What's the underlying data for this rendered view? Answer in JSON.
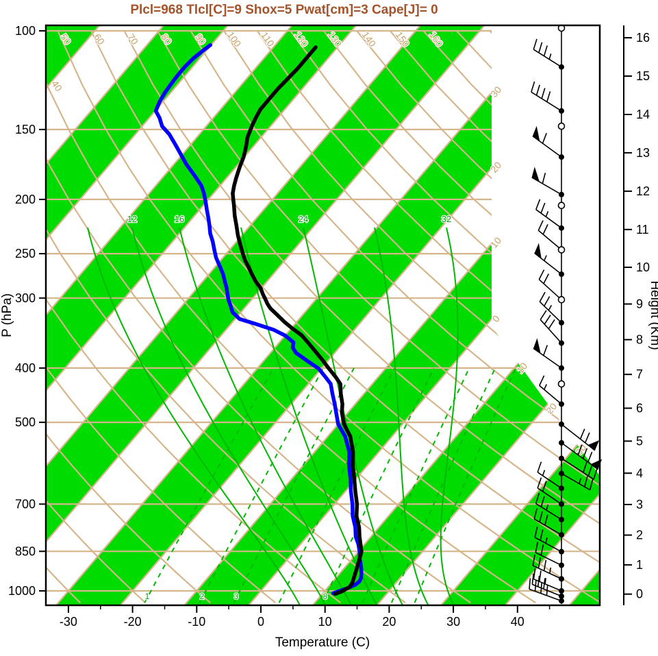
{
  "title": {
    "text": "Plcl=968 Tlcl[C]=9 Shox=5 Pwat[cm]=3 Cape[J]= 0",
    "color": "#a5532a"
  },
  "axes": {
    "pressure": {
      "label": "P (hPa)",
      "ticks": [
        100,
        150,
        200,
        250,
        300,
        400,
        500,
        700,
        850,
        1000
      ]
    },
    "temperature": {
      "label": "Temperature (C)",
      "ticks": [
        -30,
        -20,
        -10,
        0,
        10,
        20,
        30,
        40
      ]
    },
    "height": {
      "label": "Height (Km)",
      "ticks": [
        0,
        1,
        2,
        3,
        4,
        5,
        6,
        7,
        8,
        9,
        10,
        11,
        12,
        13,
        14,
        15,
        16
      ]
    }
  },
  "line_labels": {
    "top_tan": [
      "40",
      "50",
      "60",
      "70",
      "80",
      "90",
      "100",
      "110",
      "120",
      "130",
      "140",
      "150",
      "160"
    ],
    "right_tan": [
      "30",
      "20",
      "10",
      "0",
      "10",
      "20",
      "30"
    ],
    "green_moist": [
      "12",
      "16",
      "24",
      "32"
    ],
    "green_mixing": [
      "1",
      "2",
      "3",
      "8"
    ]
  },
  "colors": {
    "stripe_green": "#00dc00",
    "line_green": "#00b800",
    "tan": "#d6b58a",
    "tan_text": "#c9a166",
    "temperature_curve": "#000000",
    "dewpoint_curve": "#0000ff"
  },
  "chart_data": {
    "type": "line",
    "subtype": "skewT_logP_sounding",
    "title": "Plcl=968 Tlcl[C]=9 Shox=5 Pwat[cm]=3 Cape[J]= 0",
    "xlabel": "Temperature (C)",
    "ylabel_left": "P (hPa)",
    "ylabel_right": "Height (Km)",
    "x_range_c": [
      -33,
      45
    ],
    "pressure_range_hpa": [
      100,
      1050
    ],
    "parameters": {
      "plcl_hpa": 968,
      "tlcl_c": 9,
      "showalter_index": 5,
      "precipitable_water_cm": 3,
      "cape_j": 0
    },
    "temperature_profile_p_t": [
      [
        1013,
        12.0
      ],
      [
        1002,
        12.7
      ],
      [
        985,
        13.3
      ],
      [
        968,
        13.2
      ],
      [
        940,
        12.6
      ],
      [
        900,
        11.7
      ],
      [
        851,
        10.5
      ],
      [
        800,
        8.2
      ],
      [
        770,
        6.9
      ],
      [
        735,
        5.0
      ],
      [
        700,
        3.5
      ],
      [
        665,
        1.6
      ],
      [
        632,
        -0.2
      ],
      [
        600,
        -2.1
      ],
      [
        565,
        -4.0
      ],
      [
        530,
        -6.5
      ],
      [
        504,
        -9.1
      ],
      [
        480,
        -11.0
      ],
      [
        464,
        -12.0
      ],
      [
        445,
        -13.6
      ],
      [
        427,
        -15.0
      ],
      [
        414,
        -16.8
      ],
      [
        401,
        -18.8
      ],
      [
        388,
        -20.8
      ],
      [
        376,
        -22.8
      ],
      [
        362,
        -25.2
      ],
      [
        350,
        -27.4
      ],
      [
        340,
        -29.8
      ],
      [
        331,
        -31.9
      ],
      [
        321,
        -34.1
      ],
      [
        313,
        -35.9
      ],
      [
        307,
        -37.0
      ],
      [
        302,
        -37.8
      ],
      [
        295,
        -39.0
      ],
      [
        288,
        -40.1
      ],
      [
        280,
        -41.8
      ],
      [
        272,
        -43.3
      ],
      [
        264,
        -44.8
      ],
      [
        257,
        -46.2
      ],
      [
        249,
        -47.6
      ],
      [
        241,
        -49.0
      ],
      [
        232,
        -50.6
      ],
      [
        223,
        -52.1
      ],
      [
        214,
        -53.7
      ],
      [
        205,
        -55.2
      ],
      [
        200,
        -56.1
      ],
      [
        195,
        -57.0
      ],
      [
        189,
        -57.8
      ],
      [
        183,
        -58.5
      ],
      [
        175,
        -59.4
      ],
      [
        168,
        -60.1
      ],
      [
        161,
        -61.1
      ],
      [
        155,
        -62.1
      ],
      [
        148,
        -62.9
      ],
      [
        143,
        -63.4
      ],
      [
        138,
        -63.8
      ],
      [
        132,
        -63.8
      ],
      [
        127,
        -63.8
      ],
      [
        122,
        -63.6
      ],
      [
        117,
        -63.4
      ],
      [
        112,
        -63.4
      ],
      [
        107,
        -63.4
      ]
    ],
    "dewpoint_profile_p_t": [
      [
        1010,
        11.6
      ],
      [
        1000,
        12.3
      ],
      [
        988,
        13.2
      ],
      [
        975,
        13.9
      ],
      [
        962,
        14.1
      ],
      [
        948,
        13.9
      ],
      [
        932,
        13.4
      ],
      [
        915,
        12.8
      ],
      [
        900,
        12.2
      ],
      [
        875,
        11.1
      ],
      [
        851,
        10.2
      ],
      [
        825,
        9.0
      ],
      [
        800,
        7.6
      ],
      [
        770,
        6.3
      ],
      [
        735,
        4.4
      ],
      [
        700,
        2.8
      ],
      [
        665,
        0.9
      ],
      [
        632,
        -0.8
      ],
      [
        600,
        -2.7
      ],
      [
        565,
        -4.6
      ],
      [
        530,
        -7.3
      ],
      [
        504,
        -10.0
      ],
      [
        480,
        -11.9
      ],
      [
        464,
        -13.2
      ],
      [
        445,
        -14.9
      ],
      [
        427,
        -16.5
      ],
      [
        414,
        -18.4
      ],
      [
        401,
        -20.4
      ],
      [
        388,
        -23.3
      ],
      [
        376,
        -26.0
      ],
      [
        368,
        -27.2
      ],
      [
        360,
        -27.8
      ],
      [
        350,
        -30.0
      ],
      [
        342,
        -32.5
      ],
      [
        334,
        -36.0
      ],
      [
        327,
        -39.3
      ],
      [
        322,
        -40.4
      ],
      [
        318,
        -41.3
      ],
      [
        310,
        -42.4
      ],
      [
        302,
        -43.6
      ],
      [
        295,
        -44.5
      ],
      [
        288,
        -45.4
      ],
      [
        280,
        -46.6
      ],
      [
        272,
        -47.8
      ],
      [
        263,
        -49.4
      ],
      [
        254,
        -51.1
      ],
      [
        246,
        -52.4
      ],
      [
        238,
        -53.7
      ],
      [
        230,
        -55.2
      ],
      [
        223,
        -56.3
      ],
      [
        216,
        -57.5
      ],
      [
        209,
        -58.8
      ],
      [
        202,
        -60.1
      ],
      [
        195,
        -61.5
      ],
      [
        189,
        -62.9
      ],
      [
        181,
        -65.4
      ],
      [
        173,
        -68.1
      ],
      [
        166,
        -70.3
      ],
      [
        159,
        -72.6
      ],
      [
        153,
        -74.7
      ],
      [
        148,
        -76.9
      ],
      [
        143,
        -78.4
      ],
      [
        139,
        -79.9
      ],
      [
        134,
        -80.5
      ],
      [
        129,
        -80.9
      ],
      [
        124,
        -81.1
      ],
      [
        120,
        -81.2
      ],
      [
        116,
        -81.2
      ],
      [
        112,
        -81.0
      ],
      [
        109,
        -80.6
      ],
      [
        106,
        -80.1
      ]
    ],
    "mixing_ratio_lines_gkg": [
      1,
      2,
      3,
      5,
      8,
      12,
      16,
      20
    ],
    "moist_adiabat_lines_c": [
      8,
      12,
      16,
      20,
      24,
      28,
      32
    ],
    "wind_barbs": [
      {
        "p": 116,
        "symbol": "dot",
        "dir": 212,
        "flags": 0,
        "fulls": 3,
        "halfs": 1,
        "len": 48
      },
      {
        "p": 139,
        "symbol": "dot",
        "dir": 212,
        "flags": 0,
        "fulls": 4,
        "halfs": 0,
        "len": 52
      },
      {
        "p": 148,
        "symbol": "open",
        "dir": 0,
        "flags": 0,
        "fulls": 0,
        "halfs": 0,
        "len": 0
      },
      {
        "p": 168,
        "symbol": "dot",
        "dir": 216,
        "flags": 1,
        "fulls": 1,
        "halfs": 0,
        "len": 52
      },
      {
        "p": 196,
        "symbol": "dot",
        "dir": 210,
        "flags": 1,
        "fulls": 1,
        "halfs": 0,
        "len": 50
      },
      {
        "p": 205,
        "symbol": "open",
        "dir": 0,
        "flags": 0,
        "fulls": 0,
        "halfs": 0,
        "len": 0
      },
      {
        "p": 225,
        "symbol": "dot",
        "dir": 216,
        "flags": 0,
        "fulls": 2,
        "halfs": 1,
        "len": 46
      },
      {
        "p": 246,
        "symbol": "open",
        "dir": 220,
        "flags": 0,
        "fulls": 2,
        "halfs": 0,
        "len": 44
      },
      {
        "p": 272,
        "symbol": "dot",
        "dir": 218,
        "flags": 1,
        "fulls": 0,
        "halfs": 1,
        "len": 50
      },
      {
        "p": 302,
        "symbol": "open",
        "dir": 222,
        "flags": 0,
        "fulls": 2,
        "halfs": 0,
        "len": 44
      },
      {
        "p": 332,
        "symbol": "dot",
        "dir": 224,
        "flags": 0,
        "fulls": 2,
        "halfs": 1,
        "len": 44
      },
      {
        "p": 361,
        "symbol": "dot",
        "dir": 228,
        "flags": 0,
        "fulls": 3,
        "halfs": 0,
        "len": 46
      },
      {
        "p": 400,
        "symbol": "dot",
        "dir": 215,
        "flags": 1,
        "fulls": 1,
        "halfs": 0,
        "len": 50
      },
      {
        "p": 427,
        "symbol": "open",
        "dir": 0,
        "flags": 0,
        "fulls": 0,
        "halfs": 0,
        "len": 0
      },
      {
        "p": 464,
        "symbol": "dot",
        "dir": 220,
        "flags": 0,
        "fulls": 1,
        "halfs": 1,
        "len": 42
      },
      {
        "p": 504,
        "symbol": "dot",
        "dir": 38,
        "flags": 1,
        "fulls": 2,
        "halfs": 0,
        "len": 62
      },
      {
        "p": 544,
        "symbol": "dot",
        "dir": 36,
        "flags": 1,
        "fulls": 3,
        "halfs": 0,
        "len": 66
      },
      {
        "p": 580,
        "symbol": "dot",
        "dir": 33,
        "flags": 0,
        "fulls": 3,
        "halfs": 0,
        "len": 56
      },
      {
        "p": 617,
        "symbol": "dot",
        "dir": 30,
        "flags": 0,
        "fulls": 2,
        "halfs": 1,
        "len": 48
      },
      {
        "p": 656,
        "symbol": "dot",
        "dir": 214,
        "flags": 0,
        "fulls": 1,
        "halfs": 1,
        "len": 42
      },
      {
        "p": 700,
        "symbol": "dot",
        "dir": 214,
        "flags": 0,
        "fulls": 2,
        "halfs": 0,
        "len": 42
      },
      {
        "p": 746,
        "symbol": "dot",
        "dir": 212,
        "flags": 0,
        "fulls": 2,
        "halfs": 1,
        "len": 44
      },
      {
        "p": 794,
        "symbol": "dot",
        "dir": 210,
        "flags": 0,
        "fulls": 3,
        "halfs": 0,
        "len": 46
      },
      {
        "p": 851,
        "symbol": "dot",
        "dir": 208,
        "flags": 0,
        "fulls": 2,
        "halfs": 1,
        "len": 44
      },
      {
        "p": 900,
        "symbol": "dot",
        "dir": 206,
        "flags": 0,
        "fulls": 2,
        "halfs": 0,
        "len": 42
      },
      {
        "p": 952,
        "symbol": "dot",
        "dir": 205,
        "flags": 0,
        "fulls": 3,
        "halfs": 1,
        "len": 46
      },
      {
        "p": 1000,
        "symbol": "dot",
        "dir": 203,
        "flags": 0,
        "fulls": 2,
        "halfs": 1,
        "len": 44
      },
      {
        "p": 1022,
        "symbol": "dot",
        "dir": 202,
        "flags": 0,
        "fulls": 3,
        "halfs": 0,
        "len": 46
      },
      {
        "p": 1042,
        "symbol": "dot",
        "dir": 200,
        "flags": 0,
        "fulls": 4,
        "halfs": 0,
        "len": 50
      }
    ]
  }
}
